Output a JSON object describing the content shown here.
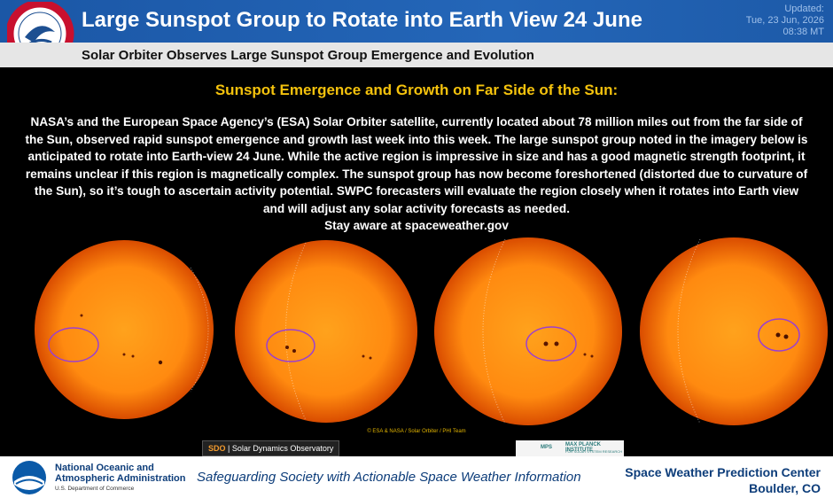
{
  "header": {
    "title": "Large Sunspot Group to Rotate into Earth View 24 June",
    "updated_label": "Updated:",
    "date": "Tue, 23 Jun, 2026",
    "time": "08:38 MT"
  },
  "subtitle": "Solar Orbiter Observes Large Sunspot Group Emergence and Evolution",
  "body": {
    "heading": "Sunspot Emergence and Growth on Far Side of the Sun:",
    "paragraph": "NASA’s and the European Space Agency’s (ESA) Solar Orbiter satellite, currently located about 78 million miles out from the far side of the Sun, observed rapid sunspot emergence and growth last week into this week. The large sunspot group noted in the imagery below is anticipated to rotate into Earth-view 24 June. While the active region is impressive in size and has a good magnetic strength footprint, it remains unclear if this region is magnetically complex. The sunspot group has now become foreshortened (distorted due to curvature of the Sun), so it’s tough to ascertain activity potential. SWPC forecasters will evaluate the region closely when it rotates into Earth view and will adjust any solar activity forecasts as needed.",
    "closing": "Stay aware at spaceweather.gov"
  },
  "credits": {
    "image": "© ESA & NASA / Solar Orbiter / PHI Team",
    "sdo": "SDO",
    "sdo_name": "Solar Dynamics Observatory",
    "mps": "MPS",
    "mps_name": "MAX PLANCK INSTITUTE",
    "mps_sub": "FOR SOLAR SYSTEM RESEARCH"
  },
  "footer": {
    "noaa_line1": "National Oceanic and",
    "noaa_line2": "Atmospheric Administration",
    "noaa_line3": "U.S. Department of Commerce",
    "tagline": "Safeguarding Society with Actionable Space Weather Information",
    "center": "Space Weather Prediction Center",
    "location": "Boulder, CO"
  }
}
